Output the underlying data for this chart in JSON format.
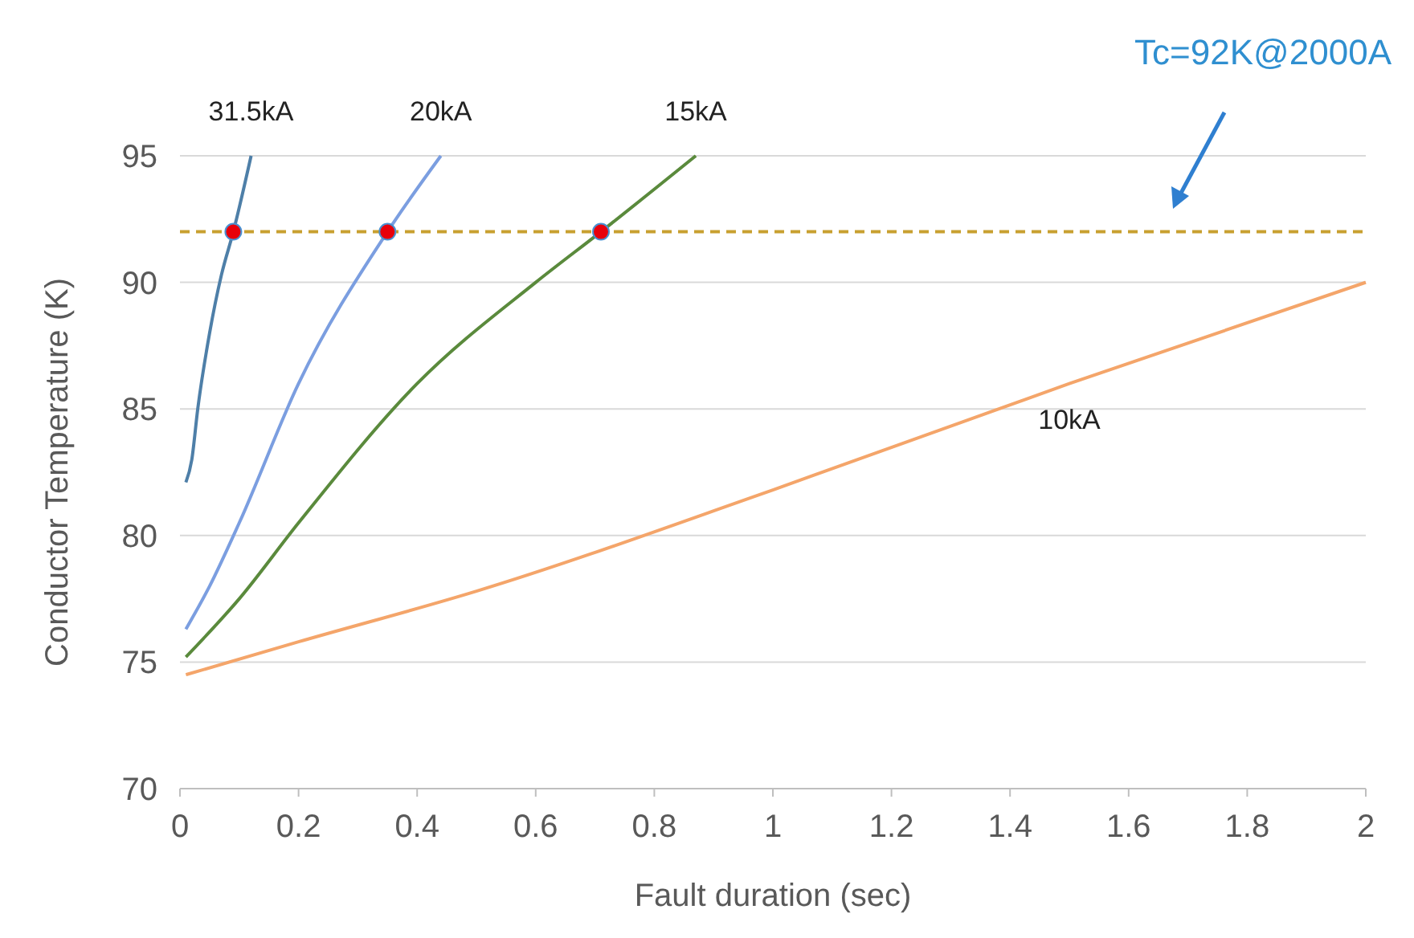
{
  "chart_data": {
    "type": "line",
    "xlabel": "Fault duration (sec)",
    "ylabel": "Conductor Temperature (K)",
    "xlim": [
      0,
      2
    ],
    "xticks": [
      0,
      0.2,
      0.4,
      0.6,
      0.8,
      1,
      1.2,
      1.4,
      1.6,
      1.8,
      2
    ],
    "ylim": [
      70,
      95
    ],
    "yticks": [
      70,
      75,
      80,
      85,
      90,
      95
    ],
    "grid": "y",
    "series": [
      {
        "name": "31.5kA",
        "color": "#4e7fa8",
        "x": [
          0.01,
          0.02,
          0.03,
          0.05,
          0.07,
          0.09,
          0.12
        ],
        "values": [
          82.1,
          83,
          85,
          88,
          90.3,
          92,
          95
        ]
      },
      {
        "name": "20kA",
        "color": "#7b9ee0",
        "x": [
          0.01,
          0.05,
          0.1,
          0.2,
          0.35,
          0.44
        ],
        "values": [
          76.3,
          78,
          80.5,
          86,
          92,
          95
        ]
      },
      {
        "name": "15kA",
        "color": "#5a8a3c",
        "x": [
          0.01,
          0.1,
          0.2,
          0.4,
          0.6,
          0.71,
          0.87
        ],
        "values": [
          75.2,
          77.5,
          80.5,
          86,
          90,
          92,
          95
        ]
      },
      {
        "name": "10kA",
        "color": "#f4a56a",
        "x": [
          0.01,
          0.2,
          0.5,
          1,
          1.5,
          2
        ],
        "values": [
          74.5,
          75.8,
          77.8,
          81.8,
          86,
          90
        ]
      },
      {
        "type": "scatter",
        "color": "#e8000b",
        "x": [
          0.09,
          0.35,
          0.71
        ],
        "values": [
          92,
          92,
          92
        ]
      }
    ],
    "ref_lines": [
      {
        "axis": "y",
        "value": 92,
        "color": "#c8a030",
        "line_style": "dashed"
      }
    ],
    "annotations": [
      "Tc=92K@2000A"
    ]
  }
}
